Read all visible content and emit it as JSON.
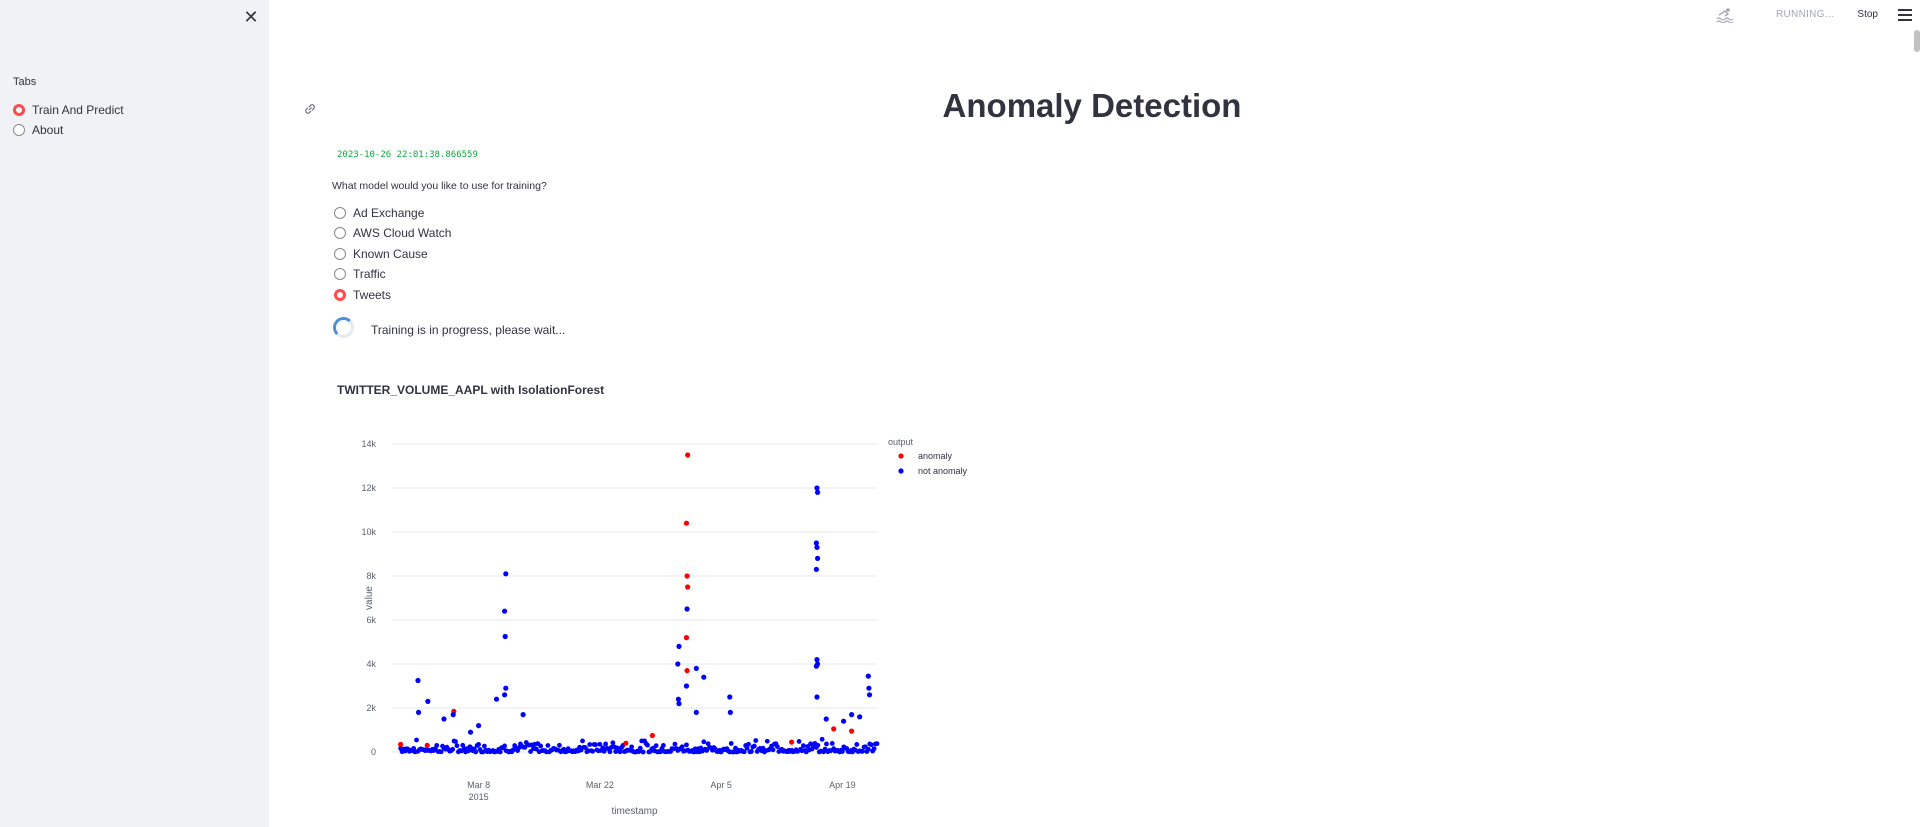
{
  "sidebar": {
    "close_icon": "close-icon",
    "label": "Tabs",
    "items": [
      {
        "label": "Train And Predict",
        "selected": true
      },
      {
        "label": "About",
        "selected": false
      }
    ]
  },
  "topbar": {
    "status": "RUNNING...",
    "status_icon": "swimmer-icon",
    "stop_label": "Stop",
    "menu_icon": "hamburger-menu-icon"
  },
  "main": {
    "title": "Anomaly Detection",
    "timestamp": "2023-10-26 22:01:38.866559",
    "question": "What model would you like to use for training?",
    "options": [
      {
        "label": "Ad Exchange",
        "selected": false
      },
      {
        "label": "AWS Cloud Watch",
        "selected": false
      },
      {
        "label": "Known Cause",
        "selected": false
      },
      {
        "label": "Traffic",
        "selected": false
      },
      {
        "label": "Tweets",
        "selected": true
      }
    ],
    "spinner_text": "Training is in progress, please wait...",
    "chart_title": "TWITTER_VOLUME_AAPL with IsolationForest"
  },
  "colors": {
    "accent": "#ff4b4b",
    "anomaly": "#ff0000",
    "not_anomaly": "#0000ff",
    "timestamp_text": "#09ab3b"
  },
  "chart_data": {
    "type": "scatter",
    "xlabel": "timestamp",
    "ylabel": "value",
    "ylim": [
      0,
      14000
    ],
    "yticks": [
      0,
      2000,
      4000,
      6000,
      8000,
      10000,
      12000,
      14000
    ],
    "ytick_labels": [
      "0",
      "2k",
      "4k",
      "6k",
      "8k",
      "10k",
      "12k",
      "14k"
    ],
    "xticks": [
      "2015-03-08",
      "2015-03-22",
      "2015-04-05",
      "2015-04-19"
    ],
    "xtick_labels": [
      "Mar 8",
      "Mar 22",
      "Apr 5",
      "Apr 19"
    ],
    "xtick_sublabel": "2015",
    "xlim": [
      "2015-02-26",
      "2015-04-23"
    ],
    "legend_title": "output",
    "legend_position": "top-right",
    "grid": true,
    "series": [
      {
        "name": "anomaly",
        "color": "#ff0000",
        "points": [
          [
            "2015-02-27",
            350
          ],
          [
            "2015-03-02",
            300
          ],
          [
            "2015-03-05",
            1850
          ],
          [
            "2015-03-25",
            400
          ],
          [
            "2015-03-28",
            750
          ],
          [
            "2015-04-01",
            13500
          ],
          [
            "2015-04-01",
            10400
          ],
          [
            "2015-04-01",
            8000
          ],
          [
            "2015-04-01",
            7500
          ],
          [
            "2015-04-01",
            5200
          ],
          [
            "2015-04-01",
            3700
          ],
          [
            "2015-04-13",
            450
          ],
          [
            "2015-04-18",
            1050
          ],
          [
            "2015-04-20",
            950
          ]
        ]
      },
      {
        "name": "not anomaly",
        "color": "#0000ff",
        "points": [
          [
            "2015-03-01",
            3250
          ],
          [
            "2015-03-01",
            1800
          ],
          [
            "2015-03-02",
            2300
          ],
          [
            "2015-03-04",
            1500
          ],
          [
            "2015-03-05",
            1700
          ],
          [
            "2015-03-11",
            8100
          ],
          [
            "2015-03-11",
            6400
          ],
          [
            "2015-03-11",
            5250
          ],
          [
            "2015-03-11",
            2900
          ],
          [
            "2015-03-11",
            2600
          ],
          [
            "2015-03-10",
            2400
          ],
          [
            "2015-03-13",
            1700
          ],
          [
            "2015-03-08",
            1200
          ],
          [
            "2015-03-07",
            900
          ],
          [
            "2015-03-31",
            4800
          ],
          [
            "2015-03-31",
            4000
          ],
          [
            "2015-04-01",
            6500
          ],
          [
            "2015-04-02",
            3800
          ],
          [
            "2015-04-03",
            3400
          ],
          [
            "2015-03-31",
            2400
          ],
          [
            "2015-03-31",
            2200
          ],
          [
            "2015-04-06",
            2500
          ],
          [
            "2015-04-06",
            1800
          ],
          [
            "2015-04-02",
            1800
          ],
          [
            "2015-04-01",
            3000
          ],
          [
            "2015-04-16",
            12000
          ],
          [
            "2015-04-16",
            11800
          ],
          [
            "2015-04-16",
            9500
          ],
          [
            "2015-04-16",
            9300
          ],
          [
            "2015-04-16",
            8800
          ],
          [
            "2015-04-16",
            8300
          ],
          [
            "2015-04-16",
            4200
          ],
          [
            "2015-04-16",
            4000
          ],
          [
            "2015-04-16",
            3900
          ],
          [
            "2015-04-16",
            2500
          ],
          [
            "2015-04-17",
            1500
          ],
          [
            "2015-04-22",
            3450
          ],
          [
            "2015-04-22",
            2900
          ],
          [
            "2015-04-22",
            2600
          ],
          [
            "2015-04-21",
            1600
          ],
          [
            "2015-04-20",
            1700
          ],
          [
            "2015-04-19",
            1400
          ]
        ]
      }
    ]
  }
}
